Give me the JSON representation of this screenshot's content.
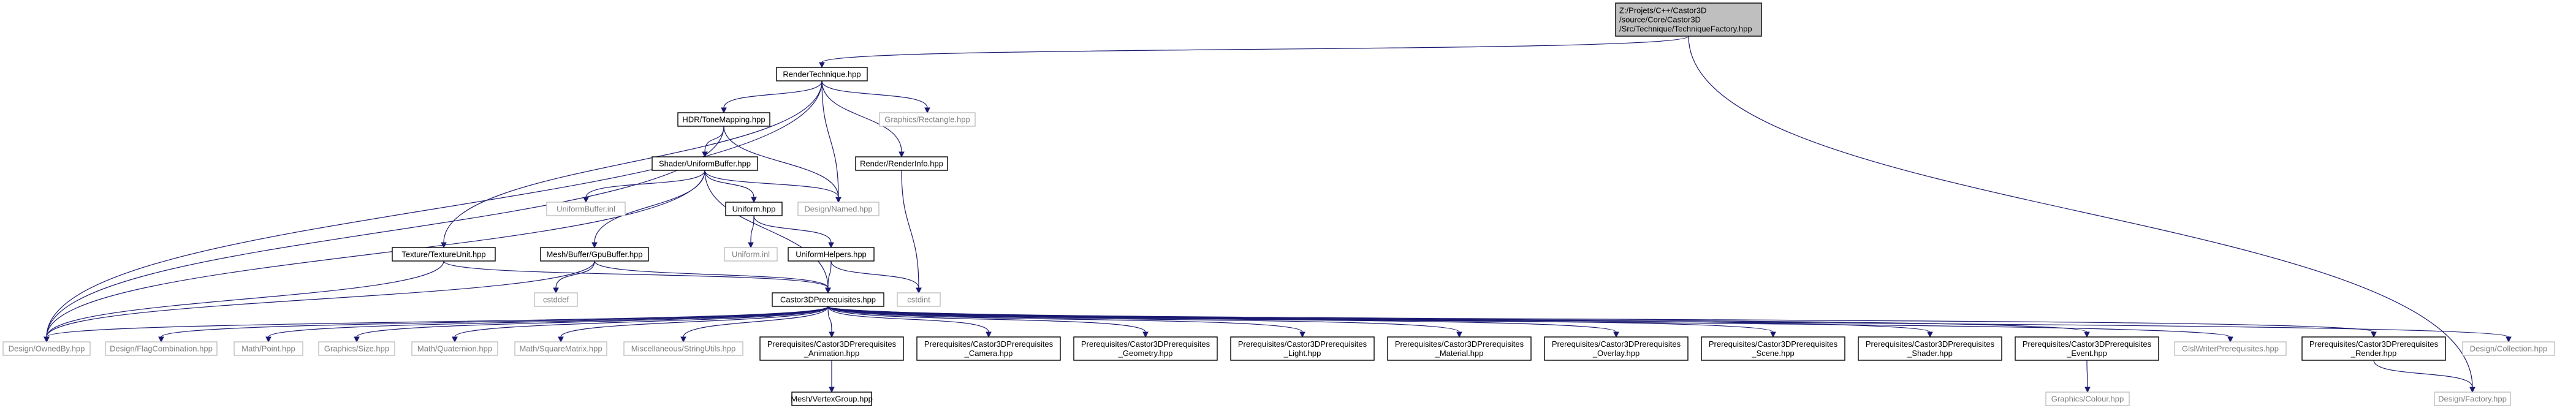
{
  "colors": {
    "edge": "#191970",
    "root_fill": "#bfbfbf",
    "ghost_border": "#bfbfbf",
    "ghost_text": "#7f7f7f"
  },
  "nodes": [
    {
      "id": "root",
      "lines": [
        "Z:/Projets/C++/Castor3D",
        "/source/Core/Castor3D",
        "/Src/Technique/TechniqueFactory.hpp"
      ],
      "style": "root"
    },
    {
      "id": "rendertechnique",
      "lines": [
        "RenderTechnique.hpp"
      ],
      "style": "solid"
    },
    {
      "id": "graphicsrectangle",
      "lines": [
        "Graphics/Rectangle.hpp"
      ],
      "style": "ghost"
    },
    {
      "id": "hdrtonemapping",
      "lines": [
        "HDR/ToneMapping.hpp"
      ],
      "style": "solid"
    },
    {
      "id": "renderrenderinfo",
      "lines": [
        "Render/RenderInfo.hpp"
      ],
      "style": "solid"
    },
    {
      "id": "shaderuniformbuffer",
      "lines": [
        "Shader/UniformBuffer.hpp"
      ],
      "style": "solid"
    },
    {
      "id": "uniformbufferinl",
      "lines": [
        "UniformBuffer.inl"
      ],
      "style": "ghost"
    },
    {
      "id": "uniformhpp",
      "lines": [
        "Uniform.hpp"
      ],
      "style": "solid"
    },
    {
      "id": "designnamed",
      "lines": [
        "Design/Named.hpp"
      ],
      "style": "ghost"
    },
    {
      "id": "uniforminl",
      "lines": [
        "Uniform.inl"
      ],
      "style": "ghost"
    },
    {
      "id": "texturetextureunit",
      "lines": [
        "Texture/TextureUnit.hpp"
      ],
      "style": "solid"
    },
    {
      "id": "meshgpubuffer",
      "lines": [
        "Mesh/Buffer/GpuBuffer.hpp"
      ],
      "style": "solid"
    },
    {
      "id": "uniformhelpers",
      "lines": [
        "UniformHelpers.hpp"
      ],
      "style": "solid"
    },
    {
      "id": "cstddef",
      "lines": [
        "cstddef"
      ],
      "style": "ghost"
    },
    {
      "id": "cstdint",
      "lines": [
        "cstdint"
      ],
      "style": "ghost"
    },
    {
      "id": "castor3dprereq",
      "lines": [
        "Castor3DPrerequisites.hpp"
      ],
      "style": "solid"
    },
    {
      "id": "designownedby",
      "lines": [
        "Design/OwnedBy.hpp"
      ],
      "style": "ghost"
    },
    {
      "id": "designflagcombination",
      "lines": [
        "Design/FlagCombination.hpp"
      ],
      "style": "ghost"
    },
    {
      "id": "mathpoint",
      "lines": [
        "Math/Point.hpp"
      ],
      "style": "ghost"
    },
    {
      "id": "graphicssize",
      "lines": [
        "Graphics/Size.hpp"
      ],
      "style": "ghost"
    },
    {
      "id": "mathquaternion",
      "lines": [
        "Math/Quaternion.hpp"
      ],
      "style": "ghost"
    },
    {
      "id": "mathsquarematrix",
      "lines": [
        "Math/SquareMatrix.hpp"
      ],
      "style": "ghost"
    },
    {
      "id": "miscstringutils",
      "lines": [
        "Miscellaneous/StringUtils.hpp"
      ],
      "style": "ghost"
    },
    {
      "id": "prereqanimation",
      "lines": [
        "Prerequisites/Castor3DPrerequisites",
        "_Animation.hpp"
      ],
      "style": "solid"
    },
    {
      "id": "prereqcamera",
      "lines": [
        "Prerequisites/Castor3DPrerequisites",
        "_Camera.hpp"
      ],
      "style": "solid"
    },
    {
      "id": "prereqgeometry",
      "lines": [
        "Prerequisites/Castor3DPrerequisites",
        "_Geometry.hpp"
      ],
      "style": "solid"
    },
    {
      "id": "prereqlight",
      "lines": [
        "Prerequisites/Castor3DPrerequisites",
        "_Light.hpp"
      ],
      "style": "solid"
    },
    {
      "id": "prereqmaterial",
      "lines": [
        "Prerequisites/Castor3DPrerequisites",
        "_Material.hpp"
      ],
      "style": "solid"
    },
    {
      "id": "prereqoverlay",
      "lines": [
        "Prerequisites/Castor3DPrerequisites",
        "_Overlay.hpp"
      ],
      "style": "solid"
    },
    {
      "id": "prereqscene",
      "lines": [
        "Prerequisites/Castor3DPrerequisites",
        "_Scene.hpp"
      ],
      "style": "solid"
    },
    {
      "id": "prereqshader",
      "lines": [
        "Prerequisites/Castor3DPrerequisites",
        "_Shader.hpp"
      ],
      "style": "solid"
    },
    {
      "id": "prereqevent",
      "lines": [
        "Prerequisites/Castor3DPrerequisites",
        "_Event.hpp"
      ],
      "style": "solid"
    },
    {
      "id": "glslwriterprereq",
      "lines": [
        "GlslWriterPrerequisites.hpp"
      ],
      "style": "ghost"
    },
    {
      "id": "prereqrender",
      "lines": [
        "Prerequisites/Castor3DPrerequisites",
        "_Render.hpp"
      ],
      "style": "solid"
    },
    {
      "id": "designcollection",
      "lines": [
        "Design/Collection.hpp"
      ],
      "style": "ghost"
    },
    {
      "id": "meshvertexgroup",
      "lines": [
        "Mesh/VertexGroup.hpp"
      ],
      "style": "solid"
    },
    {
      "id": "graphicscolour",
      "lines": [
        "Graphics/Colour.hpp"
      ],
      "style": "ghost"
    },
    {
      "id": "designfactory",
      "lines": [
        "Design/Factory.hpp"
      ],
      "style": "ghost"
    }
  ],
  "edges": [
    [
      "root",
      "rendertechnique"
    ],
    [
      "root",
      "designfactory"
    ],
    [
      "rendertechnique",
      "graphicsrectangle"
    ],
    [
      "rendertechnique",
      "hdrtonemapping"
    ],
    [
      "rendertechnique",
      "renderrenderinfo"
    ],
    [
      "rendertechnique",
      "designnamed"
    ],
    [
      "rendertechnique",
      "texturetextureunit"
    ],
    [
      "rendertechnique",
      "designownedby"
    ],
    [
      "hdrtonemapping",
      "shaderuniformbuffer"
    ],
    [
      "hdrtonemapping",
      "designnamed"
    ],
    [
      "hdrtonemapping",
      "designownedby"
    ],
    [
      "renderrenderinfo",
      "cstdint"
    ],
    [
      "shaderuniformbuffer",
      "uniformbufferinl"
    ],
    [
      "shaderuniformbuffer",
      "uniformhpp"
    ],
    [
      "shaderuniformbuffer",
      "designnamed"
    ],
    [
      "shaderuniformbuffer",
      "meshgpubuffer"
    ],
    [
      "shaderuniformbuffer",
      "castor3dprereq"
    ],
    [
      "shaderuniformbuffer",
      "designownedby"
    ],
    [
      "uniformhpp",
      "uniforminl"
    ],
    [
      "uniformhpp",
      "uniformhelpers"
    ],
    [
      "uniformhelpers",
      "cstdint"
    ],
    [
      "uniformhelpers",
      "castor3dprereq"
    ],
    [
      "texturetextureunit",
      "castor3dprereq"
    ],
    [
      "texturetextureunit",
      "designownedby"
    ],
    [
      "meshgpubuffer",
      "cstddef"
    ],
    [
      "meshgpubuffer",
      "castor3dprereq"
    ],
    [
      "meshgpubuffer",
      "designownedby"
    ],
    [
      "castor3dprereq",
      "designownedby"
    ],
    [
      "castor3dprereq",
      "designflagcombination"
    ],
    [
      "castor3dprereq",
      "mathpoint"
    ],
    [
      "castor3dprereq",
      "graphicssize"
    ],
    [
      "castor3dprereq",
      "mathquaternion"
    ],
    [
      "castor3dprereq",
      "mathsquarematrix"
    ],
    [
      "castor3dprereq",
      "miscstringutils"
    ],
    [
      "castor3dprereq",
      "prereqanimation"
    ],
    [
      "castor3dprereq",
      "prereqcamera"
    ],
    [
      "castor3dprereq",
      "prereqgeometry"
    ],
    [
      "castor3dprereq",
      "prereqlight"
    ],
    [
      "castor3dprereq",
      "prereqmaterial"
    ],
    [
      "castor3dprereq",
      "prereqoverlay"
    ],
    [
      "castor3dprereq",
      "prereqscene"
    ],
    [
      "castor3dprereq",
      "prereqshader"
    ],
    [
      "castor3dprereq",
      "prereqevent"
    ],
    [
      "castor3dprereq",
      "glslwriterprereq"
    ],
    [
      "castor3dprereq",
      "prereqrender"
    ],
    [
      "castor3dprereq",
      "designcollection"
    ],
    [
      "prereqanimation",
      "meshvertexgroup"
    ],
    [
      "prereqevent",
      "graphicscolour"
    ],
    [
      "prereqrender",
      "designfactory"
    ]
  ]
}
